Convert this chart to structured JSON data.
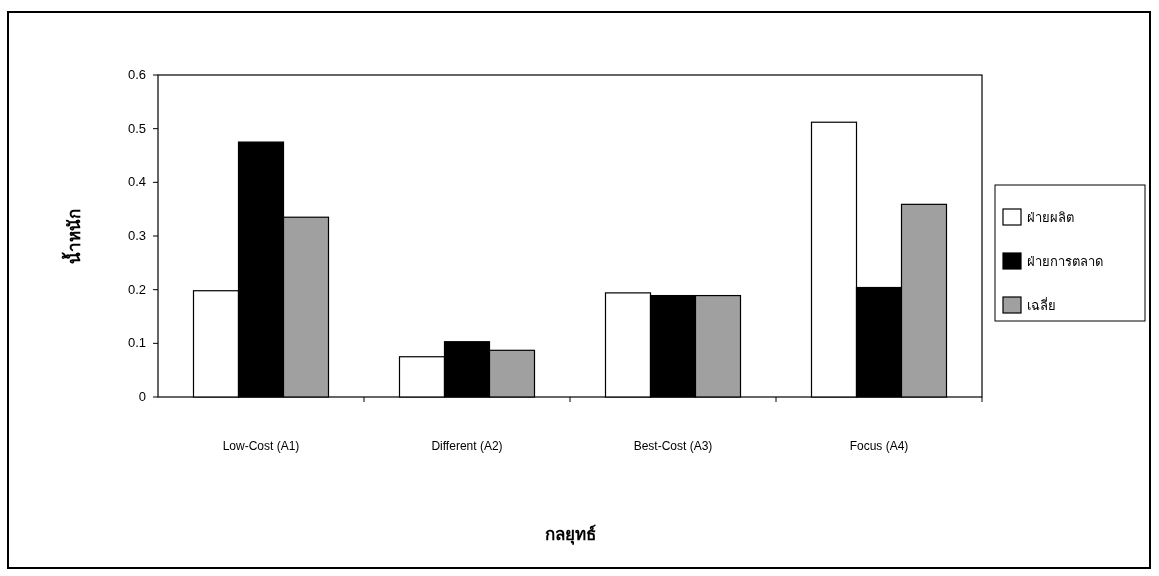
{
  "chart_data": {
    "type": "bar",
    "xlabel": "กลยุทธ์",
    "ylabel": "น้ำหนัก",
    "categories": [
      "Low-Cost (A1)",
      "Different (A2)",
      "Best-Cost (A3)",
      "Focus (A4)"
    ],
    "series": [
      {
        "name": "ฝ่ายผลิต",
        "color": "#ffffff",
        "values": [
          0.198,
          0.075,
          0.194,
          0.512
        ]
      },
      {
        "name": "ฝ่ายการตลาด",
        "color": "#000000",
        "values": [
          0.475,
          0.103,
          0.189,
          0.204
        ]
      },
      {
        "name": "เฉลี่ย",
        "color": "#a0a0a0",
        "values": [
          0.335,
          0.087,
          0.189,
          0.359
        ]
      }
    ],
    "ylim": [
      0,
      0.6
    ],
    "yticks": [
      0,
      0.1,
      0.2,
      0.3,
      0.4,
      0.5,
      0.6
    ],
    "grid": false,
    "legend": "right"
  }
}
